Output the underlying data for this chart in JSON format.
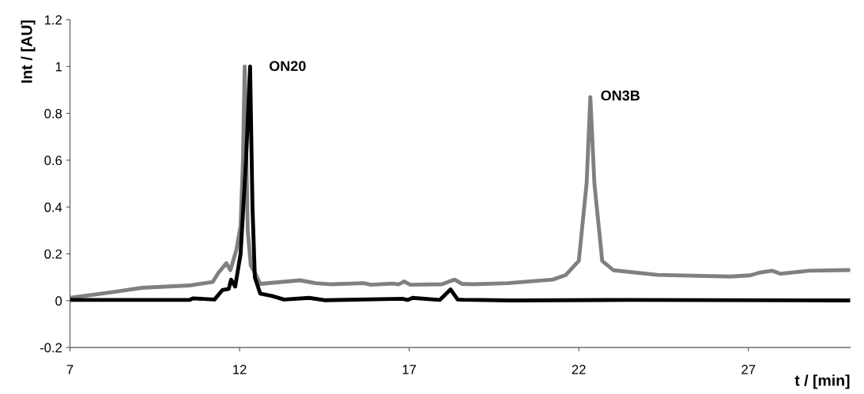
{
  "chart_data": {
    "type": "line",
    "xlabel": "t / [min]",
    "ylabel": "Int / [AU]",
    "xlim": [
      7,
      30
    ],
    "xticks": [
      7,
      12,
      17,
      22,
      27
    ],
    "ylim": [
      -0.2,
      1.2
    ],
    "yticks": [
      -0.2,
      0,
      0.2,
      0.4,
      0.6,
      0.8,
      1,
      1.2
    ],
    "grid": false,
    "legend": false,
    "marker": "none",
    "line_style": "solid",
    "series": [
      {
        "color": "#808080",
        "x": [
          7,
          8.19,
          9.12,
          10.52,
          11.21,
          11.38,
          11.61,
          11.73,
          11.91,
          12.03,
          12.1,
          12.15,
          12.24,
          12.33,
          12.45,
          12.61,
          13.78,
          14.24,
          14.71,
          15.66,
          15.87,
          16.52,
          16.69,
          16.85,
          17.03,
          17.97,
          18.15,
          18.34,
          18.55,
          18.9,
          19.9,
          21.23,
          21.62,
          22.0,
          22.23,
          22.34,
          22.46,
          22.69,
          23.02,
          24.32,
          26.46,
          27.05,
          27.33,
          27.7,
          27.95,
          28.79,
          30
        ],
        "values": [
          0.012,
          0.035,
          0.055,
          0.065,
          0.08,
          0.12,
          0.16,
          0.13,
          0.22,
          0.32,
          0.6,
          1.0,
          0.3,
          0.15,
          0.12,
          0.072,
          0.087,
          0.075,
          0.07,
          0.075,
          0.068,
          0.073,
          0.07,
          0.082,
          0.068,
          0.07,
          0.08,
          0.09,
          0.072,
          0.07,
          0.075,
          0.09,
          0.11,
          0.17,
          0.5,
          0.87,
          0.5,
          0.17,
          0.13,
          0.11,
          0.103,
          0.108,
          0.12,
          0.128,
          0.115,
          0.128,
          0.131
        ]
      },
      {
        "color": "#000000",
        "x": [
          7,
          10.52,
          10.63,
          11.26,
          11.49,
          11.68,
          11.75,
          11.87,
          12.03,
          12.19,
          12.31,
          12.38,
          12.45,
          12.61,
          12.96,
          13.31,
          14.05,
          14.5,
          16.8,
          16.95,
          17.1,
          17.9,
          18.22,
          18.43,
          18.6,
          20,
          23.5,
          30
        ],
        "values": [
          0.003,
          0.003,
          0.01,
          0.005,
          0.045,
          0.05,
          0.09,
          0.06,
          0.2,
          0.6,
          1.0,
          0.4,
          0.1,
          0.03,
          0.02,
          0.005,
          0.012,
          0.002,
          0.008,
          0.003,
          0.012,
          0.003,
          0.048,
          0.005,
          0.004,
          0.001,
          0.003,
          0.001
        ]
      }
    ],
    "annotations": [
      "ON20",
      "ON3B"
    ]
  }
}
